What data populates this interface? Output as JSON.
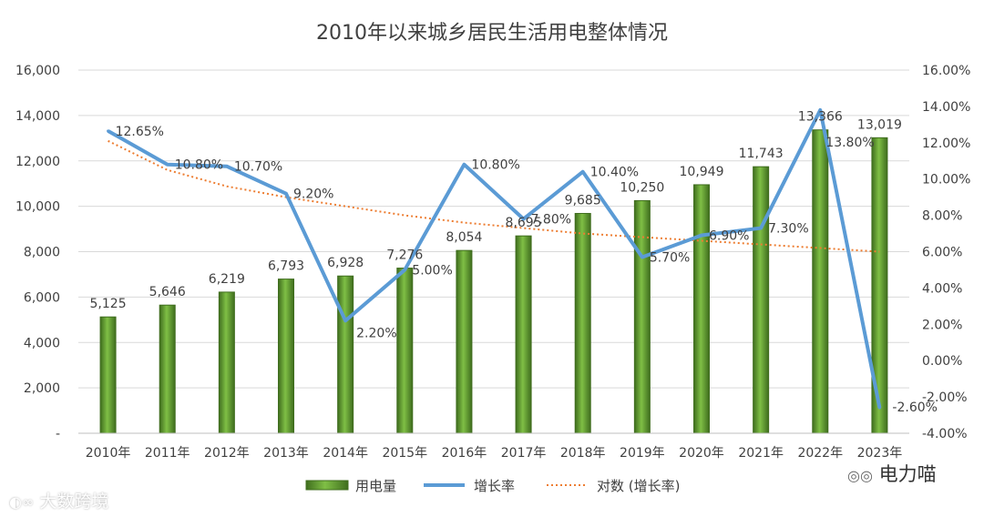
{
  "chart_data": {
    "type": "bar",
    "title": "2010年以来城乡居民生活用电整体情况",
    "categories": [
      "2010年",
      "2011年",
      "2012年",
      "2013年",
      "2014年",
      "2015年",
      "2016年",
      "2017年",
      "2018年",
      "2019年",
      "2020年",
      "2021年",
      "2022年",
      "2023年"
    ],
    "series": [
      {
        "name": "用电量",
        "type": "bar",
        "axis": "left",
        "values": [
          5125,
          5646,
          6219,
          6793,
          6928,
          7276,
          8054,
          8695,
          9685,
          10250,
          10949,
          11743,
          13366,
          13019
        ],
        "labels": [
          "5,125",
          "5,646",
          "6,219",
          "6,793",
          "6,928",
          "7,276",
          "8,054",
          "8,695",
          "9,685",
          "10,250",
          "10,949",
          "11,743",
          "13,366",
          "13,019"
        ]
      },
      {
        "name": "增长率",
        "type": "line",
        "axis": "right",
        "values": [
          12.65,
          10.8,
          10.7,
          9.2,
          2.2,
          5.0,
          10.8,
          7.8,
          10.4,
          5.7,
          6.9,
          7.3,
          13.8,
          -2.6
        ],
        "labels": [
          "12.65%",
          "10.80%",
          "10.70%",
          "9.20%",
          "2.20%",
          "5.00%",
          "10.80%",
          "7.80%",
          "10.40%",
          "5.70%",
          "6.90%",
          "7.30%",
          "13.80%",
          "-2.60%"
        ]
      },
      {
        "name": "对数 (增长率)",
        "type": "trendline-log",
        "axis": "right",
        "values": [
          12.1,
          10.5,
          9.6,
          9.0,
          8.5,
          8.0,
          7.6,
          7.3,
          7.0,
          6.8,
          6.6,
          6.4,
          6.2,
          6.0
        ]
      }
    ],
    "y_left": {
      "min": 0,
      "max": 16000,
      "ticks": [
        "-",
        "2,000",
        "4,000",
        "6,000",
        "8,000",
        "10,000",
        "12,000",
        "14,000",
        "16,000"
      ]
    },
    "y_right": {
      "min": -4,
      "max": 16,
      "ticks": [
        "-4.00%",
        "-2.00%",
        "0.00%",
        "2.00%",
        "4.00%",
        "6.00%",
        "8.00%",
        "10.00%",
        "12.00%",
        "14.00%",
        "16.00%"
      ]
    },
    "legend": {
      "position": "bottom",
      "entries": [
        "用电量",
        "增长率",
        "对数 (增长率)"
      ]
    },
    "grid": true
  },
  "colors": {
    "bar_fill": "#6aa336",
    "bar_stroke": "#3f6d1e",
    "line": "#5b9bd5",
    "trend": "#ed7d31",
    "grid": "#d9d9d9",
    "text": "#404040"
  },
  "watermarks": {
    "bottom_left": "大数跨境",
    "bottom_right": "电力喵"
  }
}
